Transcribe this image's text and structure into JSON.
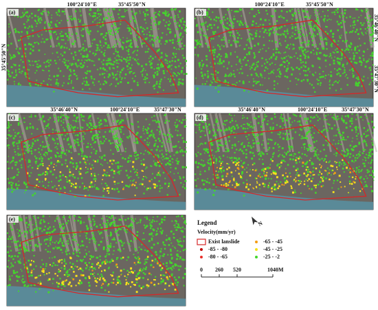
{
  "panels": [
    {
      "label": "(a)",
      "top_labels": [
        "100°24'10\"E",
        "35°45'50\"N"
      ],
      "left_labels": [
        "35°45'50\"N"
      ]
    },
    {
      "label": "(b)",
      "top_labels": [
        "100°24'10\"E",
        "35°45'50\"N"
      ],
      "right_labels": [
        "35°46'40\"N",
        "35°47'30\"N"
      ]
    },
    {
      "label": "(c)",
      "top_labels": [
        "35°46'40\"N",
        "100°24'10\"E",
        "35°47'30\"N"
      ]
    },
    {
      "label": "(d)",
      "top_labels": [
        "35°46'40\"N",
        "100°24'10\"E",
        "35°47'30\"N"
      ]
    },
    {
      "label": "(e)"
    }
  ],
  "legend": {
    "title": "Legend",
    "subtitle": "Velocity(mm/yr)",
    "boundary": {
      "label": "Exist lanslide",
      "color": "#d62728"
    },
    "classes": [
      {
        "label": "-85 - -80",
        "color": "#c00000"
      },
      {
        "label": "-80 - -65",
        "color": "#e8302a"
      },
      {
        "label": "-65 - -45",
        "color": "#f39c12"
      },
      {
        "label": "-45 - -25",
        "color": "#f5e11b"
      },
      {
        "label": "-25 - -2",
        "color": "#44d62c"
      }
    ],
    "north": "N",
    "scale": {
      "ticks": [
        0,
        260,
        520,
        1040
      ],
      "unit": "M"
    }
  }
}
